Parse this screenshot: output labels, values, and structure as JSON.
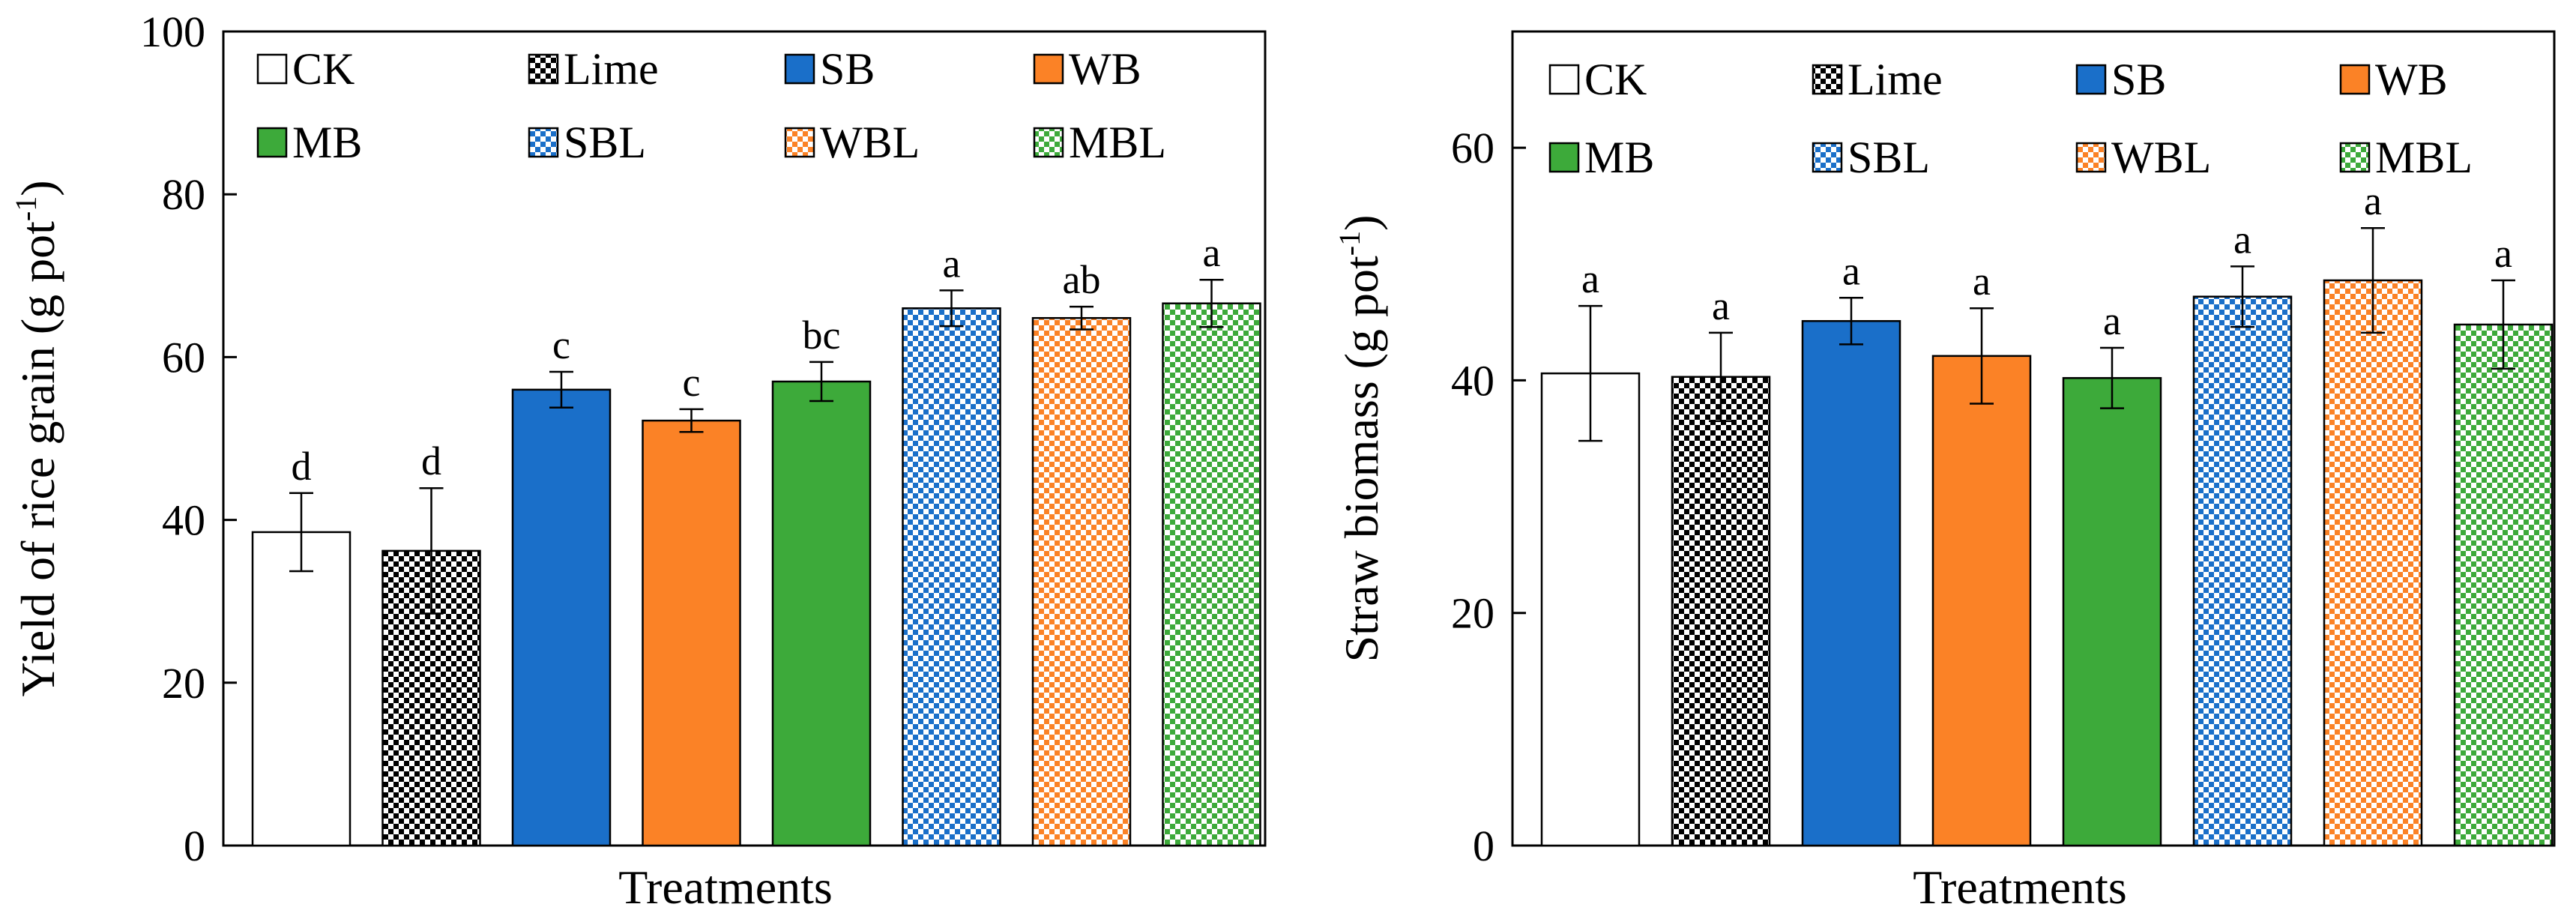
{
  "chart_data": [
    {
      "type": "bar",
      "panel": "left",
      "xlabel": "Treatments",
      "ylabel": "Yield of rice grain (g pot",
      "ylabel_sup": "-1",
      "ylabel_end": ")",
      "ylim": [
        0,
        100
      ],
      "yticks": [
        0,
        20,
        40,
        60,
        80,
        100
      ],
      "ytick_labels": [
        "0",
        "20",
        "40",
        "60",
        "80",
        "100"
      ],
      "legend_position": "top",
      "categories": [
        "CK",
        "Lime",
        "SB",
        "WB",
        "MB",
        "SBL",
        "WBL",
        "MBL"
      ],
      "values": [
        38.5,
        36.2,
        56.0,
        52.2,
        57.0,
        66.0,
        64.8,
        66.6
      ],
      "errors": [
        4.8,
        7.7,
        2.2,
        1.4,
        2.4,
        2.2,
        1.4,
        2.9
      ],
      "significance": [
        "d",
        "d",
        "c",
        "c",
        "bc",
        "a",
        "ab",
        "a"
      ]
    },
    {
      "type": "bar",
      "panel": "right",
      "xlabel": "Treatments",
      "ylabel": "Straw biomass (g pot",
      "ylabel_sup": "-1",
      "ylabel_end": ")",
      "ylim": [
        0,
        70
      ],
      "yticks": [
        0,
        20,
        40,
        60
      ],
      "ytick_labels": [
        "0",
        "20",
        "40",
        "60"
      ],
      "legend_position": "top",
      "categories": [
        "CK",
        "Lime",
        "SB",
        "WB",
        "MB",
        "SBL",
        "WBL",
        "MBL"
      ],
      "values": [
        40.6,
        40.3,
        45.1,
        42.1,
        40.2,
        47.2,
        48.6,
        44.8
      ],
      "errors": [
        5.8,
        3.8,
        2.0,
        4.1,
        2.6,
        2.6,
        4.5,
        3.8
      ],
      "significance": [
        "a",
        "a",
        "a",
        "a",
        "a",
        "a",
        "a",
        "a"
      ]
    }
  ],
  "series_styles": [
    {
      "name": "CK",
      "color": "#ffffff",
      "pattern": "none"
    },
    {
      "name": "Lime",
      "color": "#000000",
      "pattern": "checker"
    },
    {
      "name": "SB",
      "color": "#1a6fc9",
      "pattern": "none"
    },
    {
      "name": "WB",
      "color": "#fb8226",
      "pattern": "none"
    },
    {
      "name": "MB",
      "color": "#3daa3a",
      "pattern": "none"
    },
    {
      "name": "SBL",
      "color": "#1a6fc9",
      "pattern": "checker"
    },
    {
      "name": "WBL",
      "color": "#fb8226",
      "pattern": "checker"
    },
    {
      "name": "MBL",
      "color": "#3daa3a",
      "pattern": "checker"
    }
  ]
}
